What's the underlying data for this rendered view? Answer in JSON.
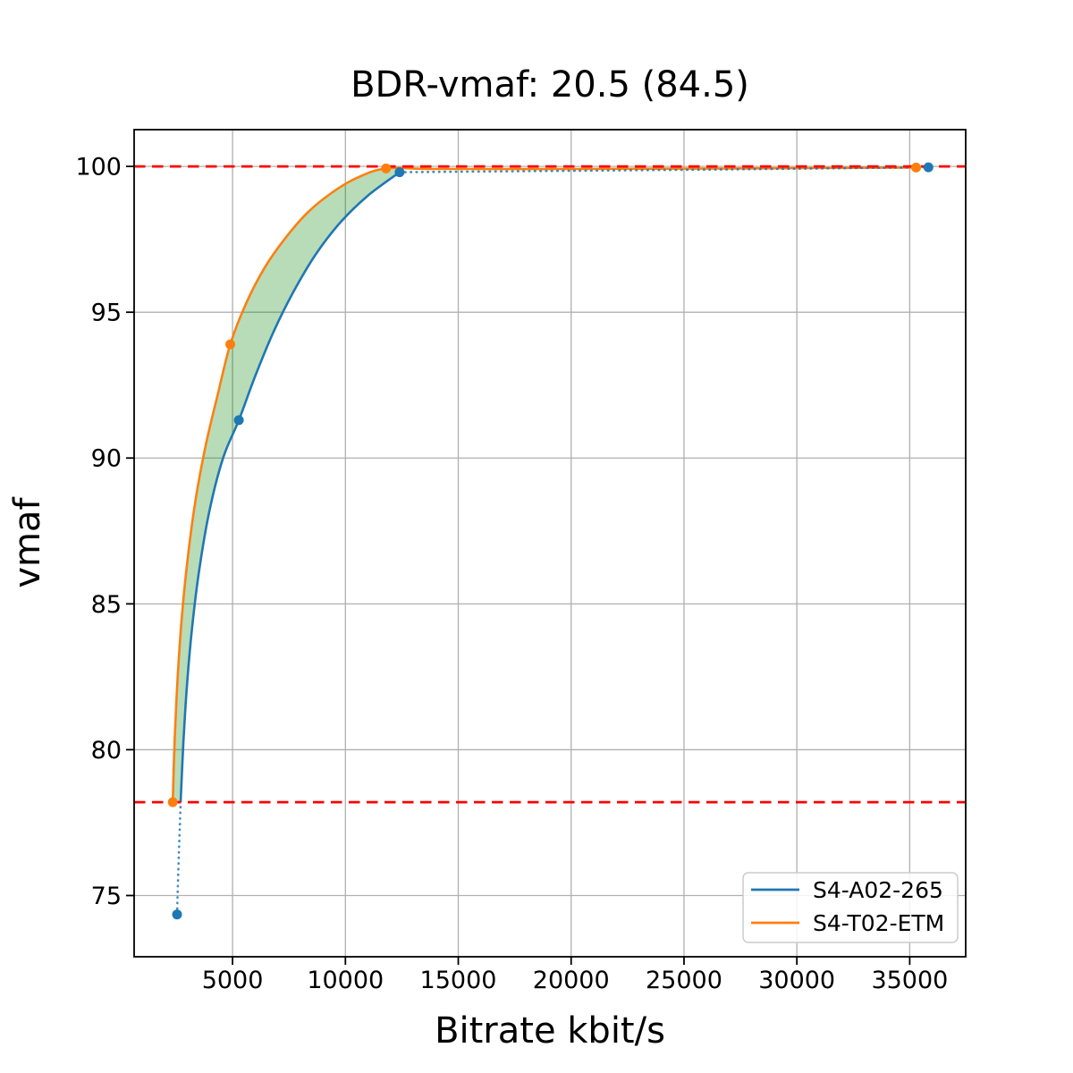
{
  "title": "BDR-vmaf: 20.5 (84.5)",
  "axes": {
    "xlabel": "Bitrate kbit/s",
    "ylabel": "vmaf"
  },
  "legend": {
    "position": "lower right",
    "items": [
      {
        "label": "S4-A02-265",
        "color": "#1f77b4"
      },
      {
        "label": "S4-T02-ETM",
        "color": "#ff7f0e"
      }
    ]
  },
  "chart_data": {
    "type": "line",
    "title": "BDR-vmaf: 20.5 (84.5)",
    "xlabel": "Bitrate kbit/s",
    "ylabel": "vmaf",
    "xlim": [
      640,
      37480
    ],
    "ylim": [
      72.9,
      101.26
    ],
    "xticks": [
      5000,
      10000,
      15000,
      20000,
      25000,
      30000,
      35000
    ],
    "yticks": [
      75,
      80,
      85,
      90,
      95,
      100
    ],
    "grid": true,
    "grid_color": "#b0b0b0",
    "bd_bounds": {
      "lower_vmaf": 78.2,
      "upper_vmaf": 100.0,
      "line_color": "#ff0000",
      "line_style": "dashed"
    },
    "shaded_region_color": "rgba(0,128,0,0.28)",
    "series": [
      {
        "name": "S4-A02-265",
        "color": "#1f77b4",
        "marker": "o",
        "data_points": [
          [
            2540,
            74.35
          ],
          [
            5280,
            91.3
          ],
          [
            12400,
            99.8
          ],
          [
            35830,
            99.97
          ]
        ],
        "solid_curve": [
          [
            2700,
            78.2
          ],
          [
            2820,
            80.2
          ],
          [
            2980,
            82.2
          ],
          [
            3210,
            84.2
          ],
          [
            3530,
            86.2
          ],
          [
            3980,
            88.2
          ],
          [
            4580,
            90.0
          ],
          [
            5280,
            91.3
          ],
          [
            6000,
            92.8
          ],
          [
            6800,
            94.3
          ],
          [
            7700,
            95.7
          ],
          [
            8700,
            97.0
          ],
          [
            9800,
            98.1
          ],
          [
            11000,
            99.0
          ],
          [
            12400,
            99.8
          ]
        ],
        "dotted_head": [
          [
            2540,
            74.35
          ],
          [
            2620,
            76.4
          ],
          [
            2700,
            78.2
          ]
        ],
        "dotted_tail": [
          [
            12400,
            99.8
          ],
          [
            15000,
            99.82
          ],
          [
            20000,
            99.85
          ],
          [
            26000,
            99.89
          ],
          [
            31000,
            99.93
          ],
          [
            35830,
            99.97
          ]
        ]
      },
      {
        "name": "S4-T02-ETM",
        "color": "#ff7f0e",
        "marker": "o",
        "data_points": [
          [
            2350,
            78.2
          ],
          [
            4900,
            93.9
          ],
          [
            11800,
            99.93
          ],
          [
            35280,
            99.96
          ]
        ],
        "solid_curve": [
          [
            2350,
            78.2
          ],
          [
            2440,
            80.4
          ],
          [
            2570,
            82.5
          ],
          [
            2760,
            84.6
          ],
          [
            3020,
            86.6
          ],
          [
            3370,
            88.6
          ],
          [
            3830,
            90.5
          ],
          [
            4350,
            92.2
          ],
          [
            4900,
            93.9
          ],
          [
            5600,
            95.3
          ],
          [
            6400,
            96.5
          ],
          [
            7300,
            97.5
          ],
          [
            8300,
            98.4
          ],
          [
            9400,
            99.1
          ],
          [
            10500,
            99.6
          ],
          [
            11800,
            99.93
          ]
        ],
        "solid_tail": [
          [
            11800,
            99.93
          ],
          [
            14000,
            99.91
          ],
          [
            20000,
            99.91
          ],
          [
            27000,
            99.93
          ],
          [
            35280,
            99.96
          ]
        ]
      }
    ]
  }
}
